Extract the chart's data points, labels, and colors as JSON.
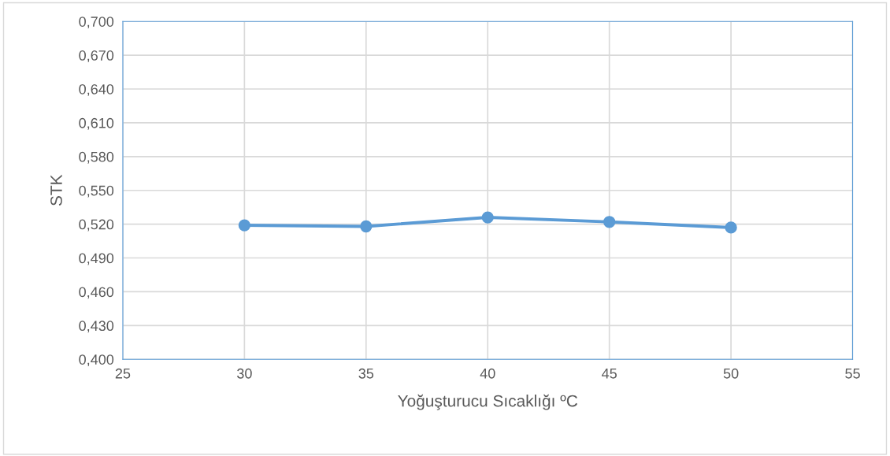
{
  "chart_data": {
    "type": "line",
    "xlabel": "Yoğuşturucu Sıcaklığı ºC",
    "ylabel": "STK",
    "x": [
      30,
      35,
      40,
      45,
      50
    ],
    "series": [
      {
        "color": "#5b9bd5",
        "values": [
          0.519,
          0.518,
          0.526,
          0.522,
          0.517
        ]
      }
    ],
    "xlim": [
      25,
      55
    ],
    "xticks": [
      25,
      30,
      35,
      40,
      45,
      50,
      55
    ],
    "ylim": [
      0.4,
      0.7
    ],
    "yticks": [
      {
        "value": 0.4,
        "label": "0,400"
      },
      {
        "value": 0.43,
        "label": "0,430"
      },
      {
        "value": 0.46,
        "label": "0,460"
      },
      {
        "value": 0.49,
        "label": "0,490"
      },
      {
        "value": 0.52,
        "label": "0,520"
      },
      {
        "value": 0.55,
        "label": "0,550"
      },
      {
        "value": 0.58,
        "label": "0,580"
      },
      {
        "value": 0.61,
        "label": "0,610"
      },
      {
        "value": 0.64,
        "label": "0,640"
      },
      {
        "value": 0.67,
        "label": "0,670"
      },
      {
        "value": 0.7,
        "label": "0,700"
      }
    ],
    "grid": true,
    "marker": "circle",
    "line_style": "solid"
  }
}
